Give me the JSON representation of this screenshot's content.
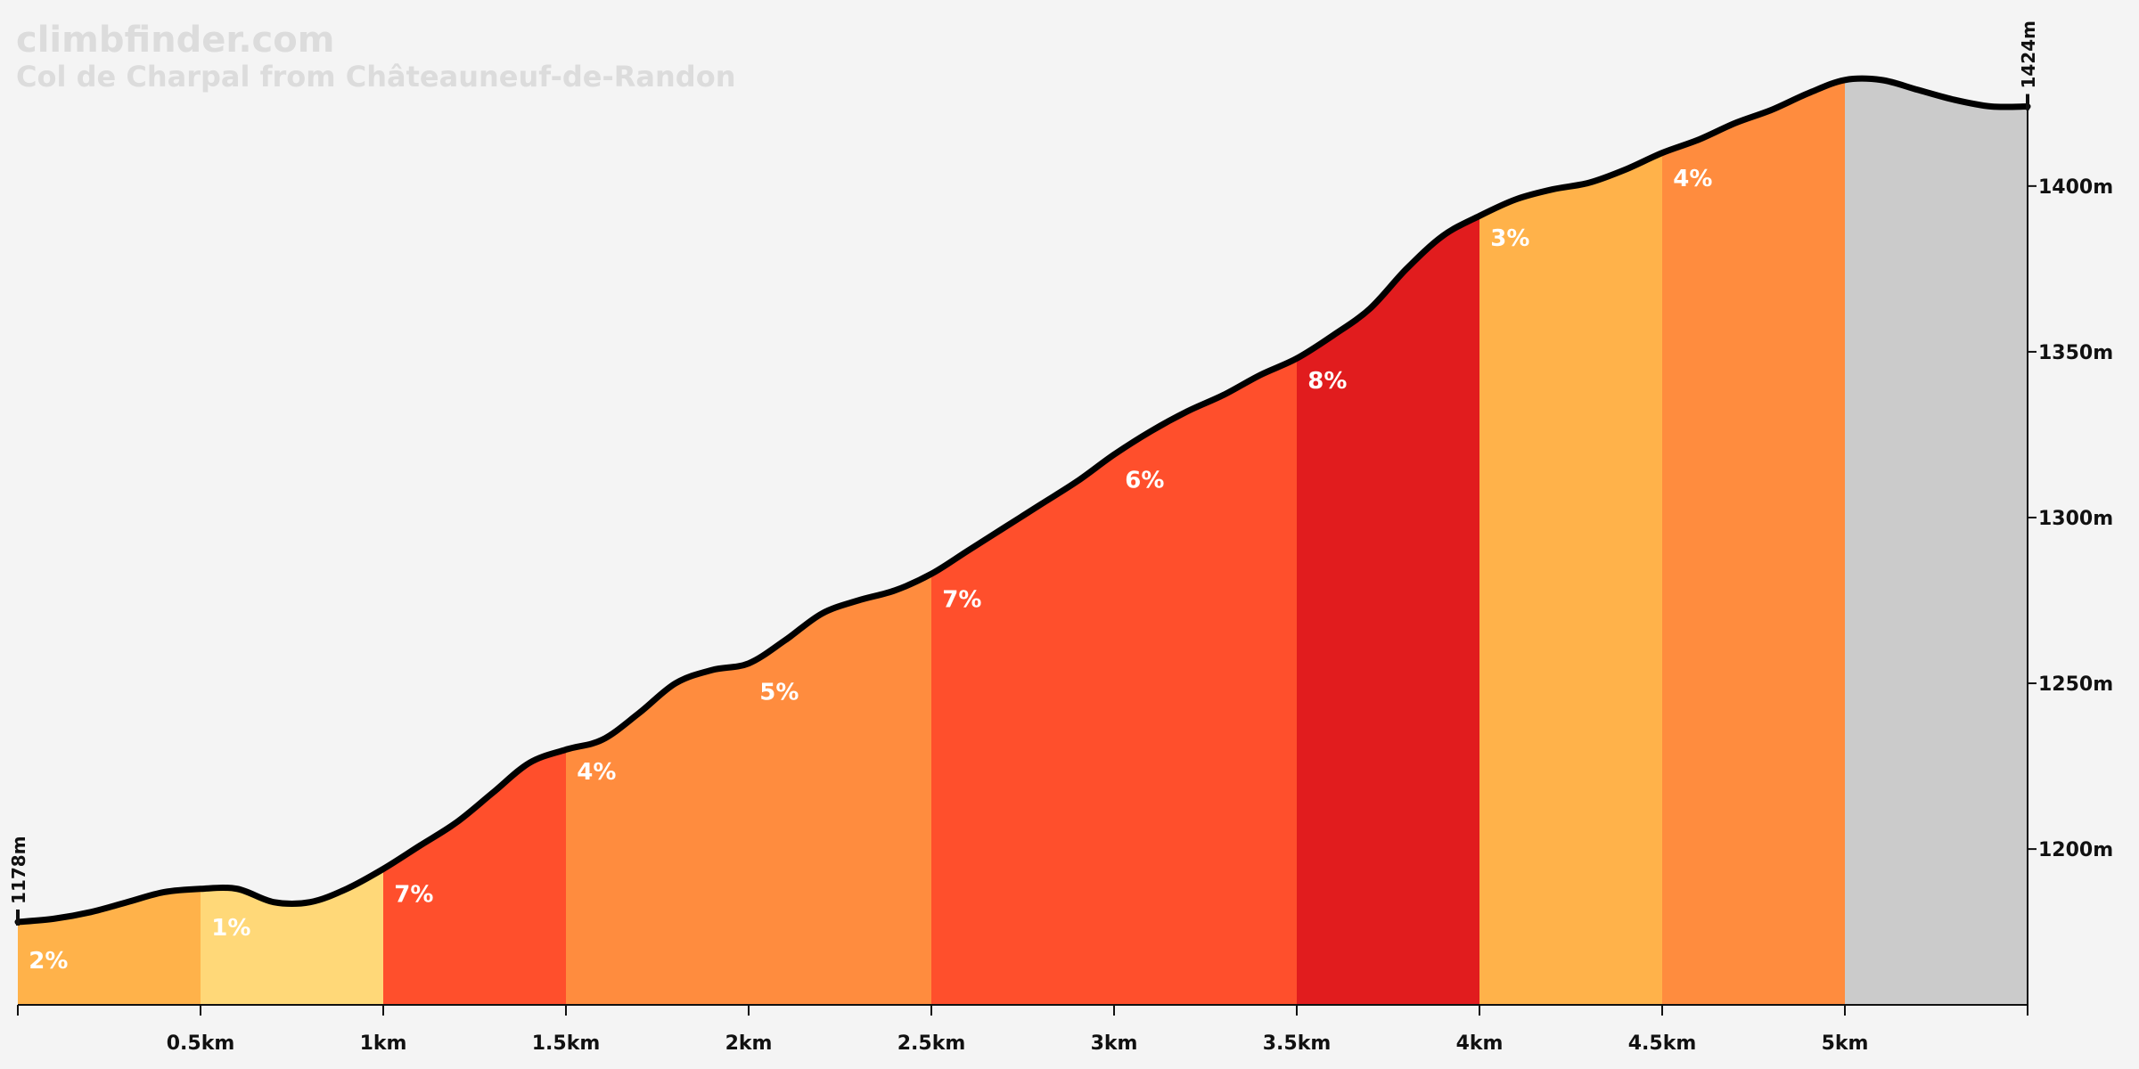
{
  "site": "climbfinder.com",
  "subtitle": "Col de Charpal from Châteauneuf-de-Randon",
  "chart_data": {
    "type": "area",
    "xunit": "km",
    "yunit": "m",
    "xlim": [
      0,
      5.5
    ],
    "ylim": [
      1153,
      1440
    ],
    "x_ticks": [
      {
        "value": 0.5,
        "label": "0.5km"
      },
      {
        "value": 1,
        "label": "1km"
      },
      {
        "value": 1.5,
        "label": "1.5km"
      },
      {
        "value": 2,
        "label": "2km"
      },
      {
        "value": 2.5,
        "label": "2.5km"
      },
      {
        "value": 3,
        "label": "3km"
      },
      {
        "value": 3.5,
        "label": "3.5km"
      },
      {
        "value": 4,
        "label": "4km"
      },
      {
        "value": 4.5,
        "label": "4.5km"
      },
      {
        "value": 5,
        "label": "5km"
      },
      {
        "value": 5.5,
        "label": ""
      }
    ],
    "y_ticks": [
      {
        "value": 1200,
        "label": "1200m"
      },
      {
        "value": 1250,
        "label": "1250m"
      },
      {
        "value": 1300,
        "label": "1300m"
      },
      {
        "value": 1350,
        "label": "1350m"
      },
      {
        "value": 1400,
        "label": "1400m"
      }
    ],
    "start_label": "1178m",
    "end_label": "1424m",
    "profile": [
      [
        0,
        1178
      ],
      [
        0.1,
        1179
      ],
      [
        0.2,
        1181
      ],
      [
        0.3,
        1184
      ],
      [
        0.4,
        1187
      ],
      [
        0.5,
        1188
      ],
      [
        0.6,
        1188
      ],
      [
        0.7,
        1184
      ],
      [
        0.8,
        1184
      ],
      [
        0.9,
        1188
      ],
      [
        1.0,
        1194
      ],
      [
        1.1,
        1201
      ],
      [
        1.2,
        1208
      ],
      [
        1.3,
        1217
      ],
      [
        1.4,
        1226
      ],
      [
        1.5,
        1230
      ],
      [
        1.6,
        1233
      ],
      [
        1.7,
        1241
      ],
      [
        1.8,
        1250
      ],
      [
        1.9,
        1254
      ],
      [
        2.0,
        1256
      ],
      [
        2.1,
        1263
      ],
      [
        2.2,
        1271
      ],
      [
        2.3,
        1275
      ],
      [
        2.4,
        1278
      ],
      [
        2.5,
        1283
      ],
      [
        2.6,
        1290
      ],
      [
        2.7,
        1297
      ],
      [
        2.8,
        1304
      ],
      [
        2.9,
        1311
      ],
      [
        3.0,
        1319
      ],
      [
        3.1,
        1326
      ],
      [
        3.2,
        1332
      ],
      [
        3.3,
        1337
      ],
      [
        3.4,
        1343
      ],
      [
        3.5,
        1348
      ],
      [
        3.6,
        1355
      ],
      [
        3.7,
        1363
      ],
      [
        3.8,
        1375
      ],
      [
        3.9,
        1385
      ],
      [
        4.0,
        1391
      ],
      [
        4.1,
        1396
      ],
      [
        4.2,
        1399
      ],
      [
        4.3,
        1401
      ],
      [
        4.4,
        1405
      ],
      [
        4.5,
        1410
      ],
      [
        4.6,
        1414
      ],
      [
        4.7,
        1419
      ],
      [
        4.8,
        1423
      ],
      [
        4.9,
        1428
      ],
      [
        5.0,
        1432
      ],
      [
        5.1,
        1432
      ],
      [
        5.2,
        1429
      ],
      [
        5.3,
        1426
      ],
      [
        5.4,
        1424
      ],
      [
        5.5,
        1424
      ]
    ],
    "segments": [
      {
        "start": 0,
        "end": 0.5,
        "grade": "2%",
        "color": "#ffb24a"
      },
      {
        "start": 0.5,
        "end": 1,
        "grade": "1%",
        "color": "#ffd878"
      },
      {
        "start": 1,
        "end": 1.5,
        "grade": "7%",
        "color": "#ff4f2c"
      },
      {
        "start": 1.5,
        "end": 2.5,
        "grade": "5%",
        "color": "#ff8c3e"
      },
      {
        "start": 2.5,
        "end": 3.5,
        "grade": "7%",
        "color": "#ff4f2c"
      },
      {
        "start": 3.5,
        "end": 4,
        "grade": "8%",
        "color": "#e11c1e"
      },
      {
        "start": 4,
        "end": 4.5,
        "grade": "3%",
        "color": "#ffb24a"
      },
      {
        "start": 4.5,
        "end": 5,
        "grade": "4%",
        "color": "#ff8c3e"
      },
      {
        "start": 5,
        "end": 5.5,
        "grade": "",
        "color": "#cbcbcb"
      }
    ],
    "grade_labels": [
      {
        "x": 0.03,
        "y": 1164,
        "text": "2%"
      },
      {
        "x": 0.53,
        "y": 1174,
        "text": "1%"
      },
      {
        "x": 1.03,
        "y": 1184,
        "text": "7%"
      },
      {
        "x": 1.53,
        "y": 1221,
        "text": "4%"
      },
      {
        "x": 2.03,
        "y": 1245,
        "text": "5%"
      },
      {
        "x": 2.53,
        "y": 1273,
        "text": "7%"
      },
      {
        "x": 3.03,
        "y": 1309,
        "text": "6%"
      },
      {
        "x": 3.53,
        "y": 1339,
        "text": "8%"
      },
      {
        "x": 4.03,
        "y": 1382,
        "text": "3%"
      },
      {
        "x": 4.53,
        "y": 1400,
        "text": "4%"
      }
    ],
    "line_color": "#000000"
  }
}
